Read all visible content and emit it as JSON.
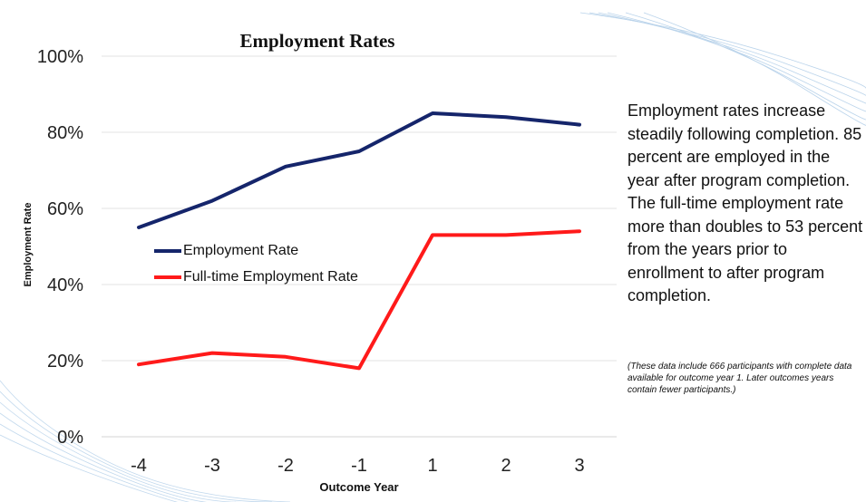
{
  "chart_data": {
    "type": "line",
    "title": "Employment Rates",
    "xlabel": "Outcome Year",
    "ylabel": "Employment Rate",
    "categories": [
      "-4",
      "-3",
      "-2",
      "-1",
      "1",
      "2",
      "3"
    ],
    "ylim": [
      0,
      100
    ],
    "yticks": [
      "0%",
      "20%",
      "40%",
      "60%",
      "80%",
      "100%"
    ],
    "grid": true,
    "legend_position": "left-middle",
    "series": [
      {
        "name": "Employment Rate",
        "color": "#15256b",
        "values": [
          55,
          62,
          71,
          75,
          85,
          84,
          82
        ]
      },
      {
        "name": "Full-time Employment Rate",
        "color": "#ff1a1a",
        "values": [
          19,
          22,
          21,
          18,
          53,
          53,
          54
        ]
      }
    ]
  },
  "description": "Employment rates increase steadily following completion. 85 percent are employed in the year after program completion. The full-time employment rate more than doubles to 53 percent from the years prior to enrollment to after program completion.",
  "footnote": "(These data include 666 participants with complete data available for outcome year 1. Later outcomes years contain fewer participants.)"
}
